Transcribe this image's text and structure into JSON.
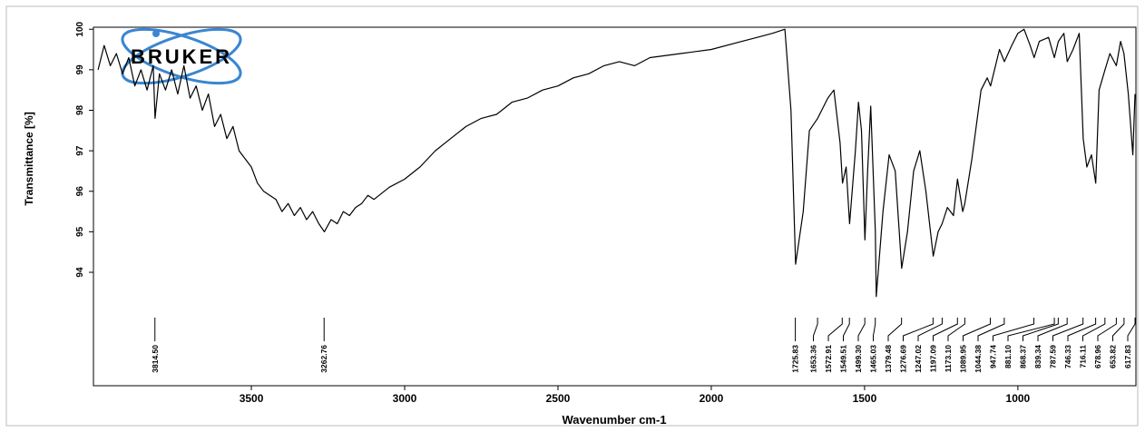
{
  "chart_data": {
    "type": "line",
    "logo_text": "BRUKER",
    "x_label": "Wavenumber cm-1",
    "y_label": "Transmittance [%]",
    "xlim": [
      4015,
      615
    ],
    "ylim": [
      91.2,
      100.05
    ],
    "xticks": [
      3500,
      3000,
      2500,
      2000,
      1500,
      1000
    ],
    "yticks": [
      100,
      99,
      98,
      97,
      96,
      95,
      94
    ],
    "series": [
      {
        "color": "#000000",
        "x": [
          4000,
          3980,
          3960,
          3940,
          3920,
          3900,
          3880,
          3860,
          3840,
          3820,
          3814,
          3800,
          3780,
          3760,
          3740,
          3720,
          3700,
          3680,
          3660,
          3640,
          3620,
          3600,
          3580,
          3560,
          3540,
          3520,
          3500,
          3480,
          3460,
          3440,
          3420,
          3400,
          3380,
          3360,
          3340,
          3320,
          3300,
          3280,
          3262,
          3240,
          3220,
          3200,
          3180,
          3160,
          3140,
          3120,
          3100,
          3050,
          3000,
          2950,
          2900,
          2850,
          2800,
          2750,
          2700,
          2650,
          2600,
          2550,
          2500,
          2450,
          2400,
          2350,
          2300,
          2250,
          2200,
          2100,
          2000,
          1900,
          1850,
          1800,
          1760,
          1740,
          1725,
          1700,
          1680,
          1653,
          1620,
          1600,
          1580,
          1572,
          1560,
          1549,
          1530,
          1520,
          1510,
          1499,
          1490,
          1480,
          1465,
          1462,
          1440,
          1420,
          1400,
          1379,
          1360,
          1340,
          1320,
          1300,
          1276,
          1260,
          1247,
          1230,
          1210,
          1197,
          1180,
          1173,
          1150,
          1120,
          1100,
          1089,
          1060,
          1044,
          1020,
          1000,
          980,
          960,
          947,
          930,
          900,
          881,
          868,
          850,
          839,
          820,
          800,
          787,
          775,
          760,
          746,
          735,
          716,
          700,
          679,
          665,
          654,
          640,
          625,
          618
        ],
        "values": [
          99.0,
          99.6,
          99.1,
          99.4,
          98.9,
          99.3,
          98.6,
          99.0,
          98.5,
          99.1,
          97.8,
          98.9,
          98.5,
          99.0,
          98.4,
          99.1,
          98.3,
          98.6,
          98.0,
          98.4,
          97.6,
          97.9,
          97.3,
          97.6,
          97.0,
          96.8,
          96.6,
          96.2,
          96.0,
          95.9,
          95.8,
          95.5,
          95.7,
          95.4,
          95.6,
          95.3,
          95.5,
          95.2,
          95.0,
          95.3,
          95.2,
          95.5,
          95.4,
          95.6,
          95.7,
          95.9,
          95.8,
          96.1,
          96.3,
          96.6,
          97.0,
          97.3,
          97.6,
          97.8,
          97.9,
          98.2,
          98.3,
          98.5,
          98.6,
          98.8,
          98.9,
          99.1,
          99.2,
          99.1,
          99.3,
          99.4,
          99.5,
          99.7,
          99.8,
          99.9,
          100.0,
          98.0,
          94.2,
          95.5,
          97.5,
          97.8,
          98.3,
          98.5,
          97.2,
          96.2,
          96.6,
          95.2,
          97.0,
          98.2,
          97.5,
          94.8,
          96.5,
          98.1,
          95.0,
          93.4,
          95.5,
          96.9,
          96.5,
          94.1,
          95.0,
          96.5,
          97.0,
          96.0,
          94.4,
          95.0,
          95.2,
          95.6,
          95.4,
          96.3,
          95.5,
          95.7,
          96.8,
          98.5,
          98.8,
          98.6,
          99.5,
          99.2,
          99.6,
          99.9,
          100.0,
          99.6,
          99.3,
          99.7,
          99.8,
          99.3,
          99.7,
          99.9,
          99.2,
          99.5,
          99.9,
          97.3,
          96.6,
          96.9,
          96.2,
          98.5,
          99.0,
          99.4,
          99.1,
          99.7,
          99.4,
          98.4,
          96.9,
          98.4
        ]
      }
    ],
    "peak_labels": [
      {
        "value": 3814.5,
        "label": "3814.50"
      },
      {
        "value": 3262.76,
        "label": "3262.76"
      },
      {
        "value": 1725.83,
        "label": "1725.83"
      },
      {
        "value": 1653.36,
        "label": "1653.36"
      },
      {
        "value": 1572.91,
        "label": "1572.91"
      },
      {
        "value": 1549.51,
        "label": "1549.51"
      },
      {
        "value": 1499.3,
        "label": "1499.30"
      },
      {
        "value": 1465.03,
        "label": "1465.03"
      },
      {
        "value": 1379.48,
        "label": "1379.48"
      },
      {
        "value": 1276.69,
        "label": "1276.69"
      },
      {
        "value": 1247.02,
        "label": "1247.02"
      },
      {
        "value": 1197.09,
        "label": "1197.09"
      },
      {
        "value": 1173.1,
        "label": "1173.10"
      },
      {
        "value": 1089.95,
        "label": "1089.95"
      },
      {
        "value": 1044.38,
        "label": "1044.38"
      },
      {
        "value": 947.74,
        "label": "947.74"
      },
      {
        "value": 881.1,
        "label": "881.10"
      },
      {
        "value": 868.37,
        "label": "868.37"
      },
      {
        "value": 839.34,
        "label": "839.34"
      },
      {
        "value": 787.59,
        "label": "787.59"
      },
      {
        "value": 746.33,
        "label": "746.33"
      },
      {
        "value": 716.11,
        "label": "716.11"
      },
      {
        "value": 678.96,
        "label": "678.96"
      },
      {
        "value": 653.82,
        "label": "653.82"
      },
      {
        "value": 617.83,
        "label": "617.83"
      }
    ]
  }
}
